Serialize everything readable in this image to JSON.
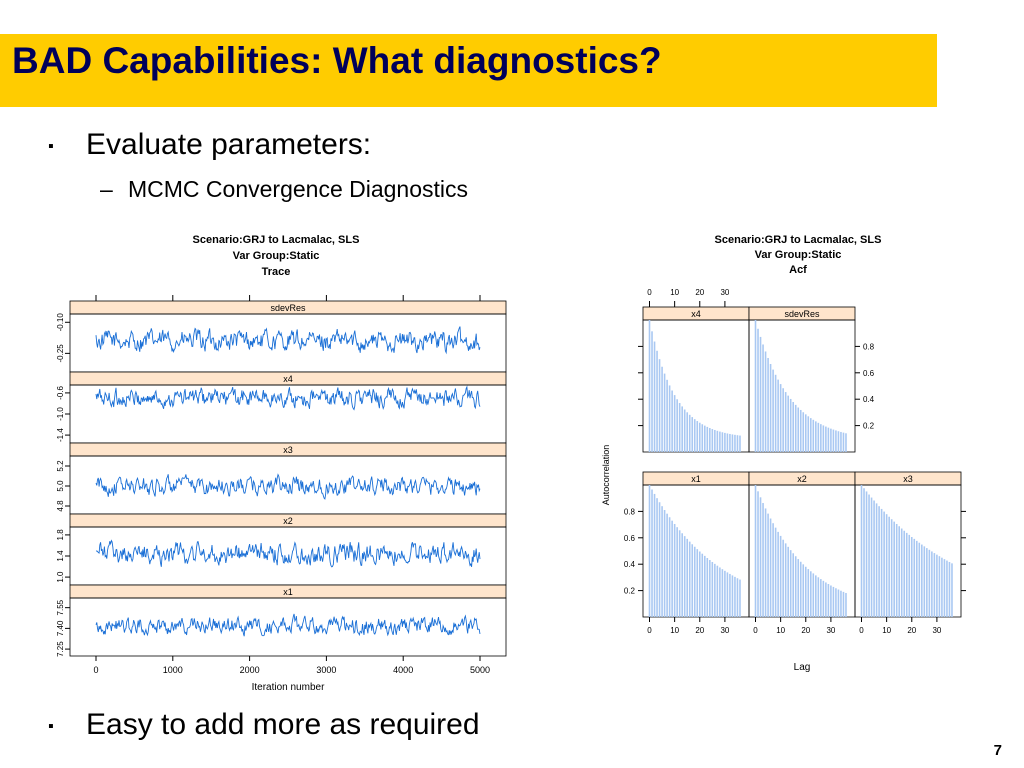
{
  "slide": {
    "title": "BAD Capabilities: What diagnostics?",
    "bullets": [
      {
        "marker": "▪",
        "text": "Evaluate parameters:"
      },
      {
        "marker": "–",
        "text": "MCMC Convergence Diagnostics"
      },
      {
        "marker": "▪",
        "text": "Easy to add more as required"
      }
    ],
    "page_number": "7"
  },
  "chart_data": [
    {
      "type": "line",
      "title": [
        "Scenario:GRJ to Lacmalac, SLS",
        "Var Group:Static",
        "Trace"
      ],
      "xlabel": "Iteration number",
      "ylabel": "",
      "x_ticks": [
        "0",
        "1000",
        "2000",
        "3000",
        "4000",
        "5000"
      ],
      "xlim": [
        0,
        5000
      ],
      "color": "#1a6fd6",
      "strip_color": "#ffe5cc",
      "panels": [
        {
          "name": "sdevRes",
          "yticks": [
            "-0.25",
            "-0.10"
          ],
          "ylim": [
            -0.34,
            -0.06
          ],
          "mean": -0.19,
          "amp": 0.05
        },
        {
          "name": "x4",
          "yticks": [
            "-1.4",
            "-1.0",
            "-0.6"
          ],
          "ylim": [
            -1.55,
            -0.45
          ],
          "mean": -0.7,
          "amp": 0.18
        },
        {
          "name": "x3",
          "yticks": [
            "4.8",
            "5.0",
            "5.2"
          ],
          "ylim": [
            4.72,
            5.3
          ],
          "mean": 5.0,
          "amp": 0.09
        },
        {
          "name": "x2",
          "yticks": [
            "1.0",
            "1.4",
            "1.8"
          ],
          "ylim": [
            0.85,
            1.95
          ],
          "mean": 1.45,
          "amp": 0.2
        },
        {
          "name": "x1",
          "yticks": [
            "7.25",
            "7.40",
            "7.55"
          ],
          "ylim": [
            7.2,
            7.62
          ],
          "mean": 7.42,
          "amp": 0.06
        }
      ]
    },
    {
      "type": "bar",
      "title": [
        "Scenario:GRJ to Lacmalac, SLS",
        "Var Group:Static",
        "Acf"
      ],
      "xlabel": "Lag",
      "ylabel": "Autocorrelation",
      "x_ticks": [
        "0",
        "10",
        "20",
        "30"
      ],
      "y_ticks": [
        "0.2",
        "0.4",
        "0.6",
        "0.8"
      ],
      "xlim": [
        -1,
        38
      ],
      "ylim": [
        0.0,
        1.0
      ],
      "color": "#a9c8f2",
      "strip_color": "#ffe5cc",
      "panels": [
        {
          "name": "x4",
          "decay": 0.1,
          "floor": 0.1
        },
        {
          "name": "sdevRes",
          "decay": 0.075,
          "floor": 0.08
        },
        {
          "name": "x1",
          "decay": 0.035,
          "floor": 0.0
        },
        {
          "name": "x2",
          "decay": 0.05,
          "floor": 0.02
        },
        {
          "name": "x3",
          "decay": 0.025,
          "floor": 0.0
        }
      ]
    }
  ]
}
